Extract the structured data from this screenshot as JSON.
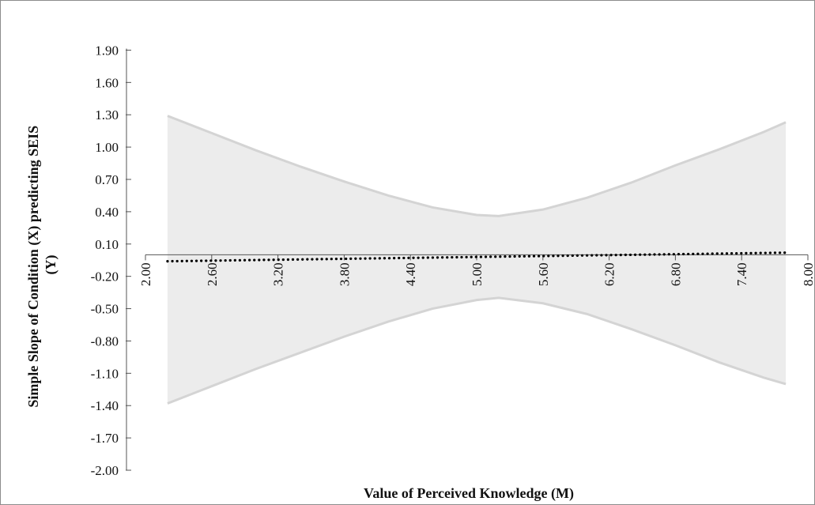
{
  "chart_data": {
    "type": "line",
    "title": "",
    "xlabel": "Value of Perceived Knowledge (M)",
    "ylabel_lines": [
      "Simple Slope of Condition (X) predicting SEIS",
      "(Y)"
    ],
    "xlim": [
      2.0,
      8.0
    ],
    "ylim": [
      -2.0,
      2.05
    ],
    "x_ticks": [
      "2.00",
      "2.60",
      "3.20",
      "3.80",
      "4.40",
      "5.00",
      "5.60",
      "6.20",
      "6.80",
      "7.40",
      "8.00"
    ],
    "y_ticks": [
      "1.90",
      "1.60",
      "1.30",
      "1.00",
      "0.70",
      "0.40",
      "0.10",
      "-0.20",
      "-0.50",
      "-0.80",
      "-1.10",
      "-1.40",
      "-1.70",
      "-2.00"
    ],
    "grid": false,
    "legend": "none",
    "series": [
      {
        "role": "upper-ci",
        "x": [
          2.2,
          2.6,
          3.0,
          3.4,
          3.8,
          4.2,
          4.6,
          5.0,
          5.2,
          5.6,
          6.0,
          6.4,
          6.8,
          7.2,
          7.6,
          7.8
        ],
        "values": [
          1.29,
          1.13,
          0.97,
          0.82,
          0.68,
          0.55,
          0.44,
          0.37,
          0.36,
          0.42,
          0.53,
          0.67,
          0.83,
          0.98,
          1.14,
          1.23
        ]
      },
      {
        "role": "lower-ci",
        "x": [
          2.2,
          2.6,
          3.0,
          3.4,
          3.8,
          4.2,
          4.6,
          5.0,
          5.2,
          5.6,
          6.0,
          6.4,
          6.8,
          7.2,
          7.6,
          7.8
        ],
        "values": [
          -1.38,
          -1.22,
          -1.06,
          -0.91,
          -0.76,
          -0.62,
          -0.5,
          -0.42,
          -0.4,
          -0.45,
          -0.55,
          -0.69,
          -0.84,
          -1.0,
          -1.14,
          -1.2
        ]
      },
      {
        "role": "simple-slope",
        "x": [
          2.2,
          7.8
        ],
        "values": [
          -0.06,
          0.02
        ]
      }
    ],
    "colors": {
      "band_fill": "#ececec",
      "band_line": "#d4d4d4",
      "slope_line": "#000000",
      "axis": "#555555"
    }
  }
}
